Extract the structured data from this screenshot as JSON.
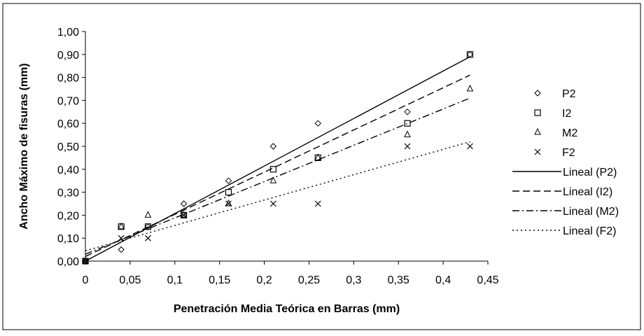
{
  "chart_data": {
    "type": "scatter",
    "title": "",
    "xlabel": "Penetración Media Teórica en Barras (mm)",
    "ylabel": "Ancho Máximo de fisuras (mm)",
    "xlim": [
      0,
      0.45
    ],
    "ylim": [
      0,
      1.0
    ],
    "x_ticks": [
      "0",
      "0,05",
      "0,1",
      "0,15",
      "0,2",
      "0,25",
      "0,3",
      "0,35",
      "0,4",
      "0,45"
    ],
    "y_ticks": [
      "0,00",
      "0,10",
      "0,20",
      "0,30",
      "0,40",
      "0,50",
      "0,60",
      "0,70",
      "0,80",
      "0,90",
      "1,00"
    ],
    "grid": false,
    "legend_position": "right",
    "series": [
      {
        "name": "P2",
        "marker": "diamond",
        "points": [
          [
            0,
            0
          ],
          [
            0.04,
            0.05
          ],
          [
            0.07,
            0.15
          ],
          [
            0.11,
            0.25
          ],
          [
            0.16,
            0.35
          ],
          [
            0.21,
            0.5
          ],
          [
            0.26,
            0.6
          ],
          [
            0.36,
            0.65
          ],
          [
            0.43,
            0.9
          ]
        ]
      },
      {
        "name": "I2",
        "marker": "square",
        "points": [
          [
            0,
            0
          ],
          [
            0.04,
            0.15
          ],
          [
            0.07,
            0.15
          ],
          [
            0.11,
            0.2
          ],
          [
            0.16,
            0.3
          ],
          [
            0.21,
            0.4
          ],
          [
            0.26,
            0.45
          ],
          [
            0.36,
            0.6
          ],
          [
            0.43,
            0.9
          ]
        ]
      },
      {
        "name": "M2",
        "marker": "triangle",
        "points": [
          [
            0,
            0
          ],
          [
            0.04,
            0.15
          ],
          [
            0.07,
            0.2
          ],
          [
            0.11,
            0.2
          ],
          [
            0.16,
            0.25
          ],
          [
            0.21,
            0.35
          ],
          [
            0.26,
            0.45
          ],
          [
            0.36,
            0.55
          ],
          [
            0.43,
            0.75
          ]
        ]
      },
      {
        "name": "F2",
        "marker": "x",
        "points": [
          [
            0,
            0
          ],
          [
            0.04,
            0.1
          ],
          [
            0.07,
            0.1
          ],
          [
            0.11,
            0.2
          ],
          [
            0.16,
            0.25
          ],
          [
            0.21,
            0.25
          ],
          [
            0.26,
            0.25
          ],
          [
            0.36,
            0.5
          ],
          [
            0.43,
            0.5
          ]
        ]
      }
    ],
    "trendlines": [
      {
        "name": "Lineal (P2)",
        "dash": "solid",
        "start": [
          0,
          0.0
        ],
        "end": [
          0.43,
          0.89
        ]
      },
      {
        "name": "Lineal (I2)",
        "dash": "dash",
        "start": [
          0,
          0.02
        ],
        "end": [
          0.43,
          0.81
        ]
      },
      {
        "name": "Lineal (M2)",
        "dash": "dashdot",
        "start": [
          0,
          0.03
        ],
        "end": [
          0.43,
          0.71
        ]
      },
      {
        "name": "Lineal (F2)",
        "dash": "dot",
        "start": [
          0,
          0.045
        ],
        "end": [
          0.43,
          0.52
        ]
      }
    ]
  }
}
